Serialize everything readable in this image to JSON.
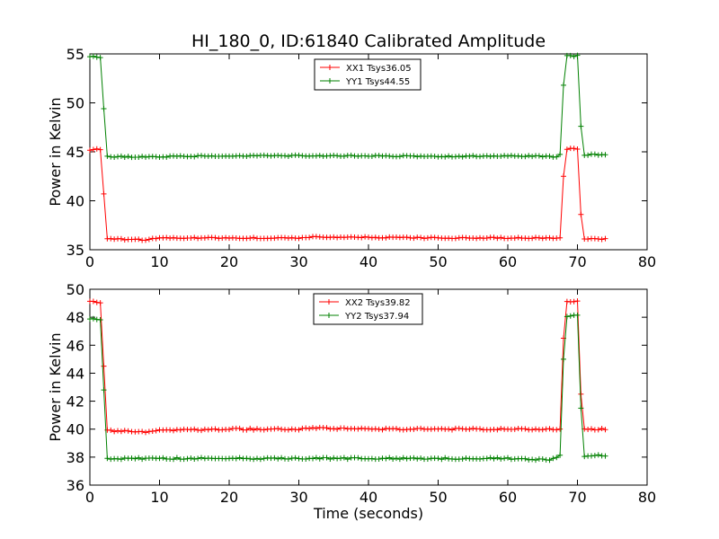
{
  "figure": {
    "title": "HI_180_0, ID:61840 Calibrated Amplitude"
  },
  "chart_data": [
    {
      "type": "line",
      "title": "HI_180_0, ID:61840 Calibrated Amplitude",
      "xlabel": "",
      "ylabel": "Power in Kelvin",
      "xlim": [
        0,
        80
      ],
      "ylim": [
        35,
        55
      ],
      "xticks": [
        0,
        10,
        20,
        30,
        40,
        50,
        60,
        70,
        80
      ],
      "yticks": [
        35,
        40,
        45,
        50,
        55
      ],
      "grid": false,
      "legend": "top-center",
      "series": [
        {
          "name": "XX1 Tsys36.05",
          "color": "#ff0000",
          "marker": "+",
          "low": 36.1,
          "high": 45.2,
          "points": [
            [
              0,
              45.2
            ],
            [
              1,
              45.3
            ],
            [
              1.5,
              45.2
            ],
            [
              2,
              40.7
            ],
            [
              2.5,
              36.1
            ],
            [
              8,
              36.0
            ],
            [
              10,
              36.2
            ],
            [
              30,
              36.2
            ],
            [
              32,
              36.3
            ],
            [
              50,
              36.2
            ],
            [
              67.5,
              36.2
            ],
            [
              68,
              42.5
            ],
            [
              68.5,
              45.3
            ],
            [
              70,
              45.3
            ],
            [
              70.5,
              38.6
            ],
            [
              71,
              36.1
            ],
            [
              74,
              36.1
            ]
          ]
        },
        {
          "name": "YY1 Tsys44.55",
          "color": "#008000",
          "marker": "+",
          "low": 44.5,
          "high": 54.7,
          "points": [
            [
              0,
              54.7
            ],
            [
              1,
              54.7
            ],
            [
              1.5,
              54.6
            ],
            [
              2,
              49.4
            ],
            [
              2.5,
              44.5
            ],
            [
              10,
              44.5
            ],
            [
              20,
              44.6
            ],
            [
              30,
              44.6
            ],
            [
              40,
              44.6
            ],
            [
              50,
              44.5
            ],
            [
              60,
              44.6
            ],
            [
              67,
              44.5
            ],
            [
              67.5,
              44.7
            ],
            [
              68,
              51.8
            ],
            [
              68.5,
              54.8
            ],
            [
              70,
              54.8
            ],
            [
              70.5,
              47.6
            ],
            [
              71,
              44.7
            ],
            [
              74,
              44.7
            ]
          ]
        }
      ]
    },
    {
      "type": "line",
      "title": "",
      "xlabel": "Time (seconds)",
      "ylabel": "Power in Kelvin",
      "xlim": [
        0,
        80
      ],
      "ylim": [
        36,
        50
      ],
      "xticks": [
        0,
        10,
        20,
        30,
        40,
        50,
        60,
        70,
        80
      ],
      "yticks": [
        36,
        38,
        40,
        42,
        44,
        46,
        48,
        50
      ],
      "grid": false,
      "legend": "top-center",
      "series": [
        {
          "name": "XX2 Tsys39.82",
          "color": "#ff0000",
          "marker": "+",
          "low": 39.9,
          "high": 49.1,
          "points": [
            [
              0,
              49.1
            ],
            [
              1,
              49.1
            ],
            [
              1.5,
              49.0
            ],
            [
              2,
              44.5
            ],
            [
              2.5,
              39.9
            ],
            [
              8,
              39.8
            ],
            [
              10,
              39.9
            ],
            [
              20,
              40.0
            ],
            [
              30,
              40.0
            ],
            [
              32,
              40.1
            ],
            [
              40,
              40.0
            ],
            [
              50,
              40.0
            ],
            [
              60,
              40.0
            ],
            [
              67.5,
              40.0
            ],
            [
              68,
              46.5
            ],
            [
              68.5,
              49.1
            ],
            [
              70,
              49.1
            ],
            [
              70.5,
              42.5
            ],
            [
              71,
              40.0
            ],
            [
              74,
              40.0
            ]
          ]
        },
        {
          "name": "YY2 Tsys37.94",
          "color": "#008000",
          "marker": "+",
          "low": 37.9,
          "high": 47.9,
          "points": [
            [
              0,
              47.9
            ],
            [
              1,
              47.9
            ],
            [
              1.5,
              47.8
            ],
            [
              2,
              42.8
            ],
            [
              2.5,
              37.9
            ],
            [
              10,
              37.9
            ],
            [
              20,
              37.9
            ],
            [
              30,
              37.9
            ],
            [
              40,
              37.9
            ],
            [
              50,
              37.9
            ],
            [
              60,
              37.9
            ],
            [
              66,
              37.8
            ],
            [
              67.5,
              38.1
            ],
            [
              68,
              45.0
            ],
            [
              68.5,
              48.1
            ],
            [
              70,
              48.1
            ],
            [
              70.5,
              41.5
            ],
            [
              71,
              38.1
            ],
            [
              74,
              38.1
            ]
          ]
        }
      ]
    }
  ]
}
